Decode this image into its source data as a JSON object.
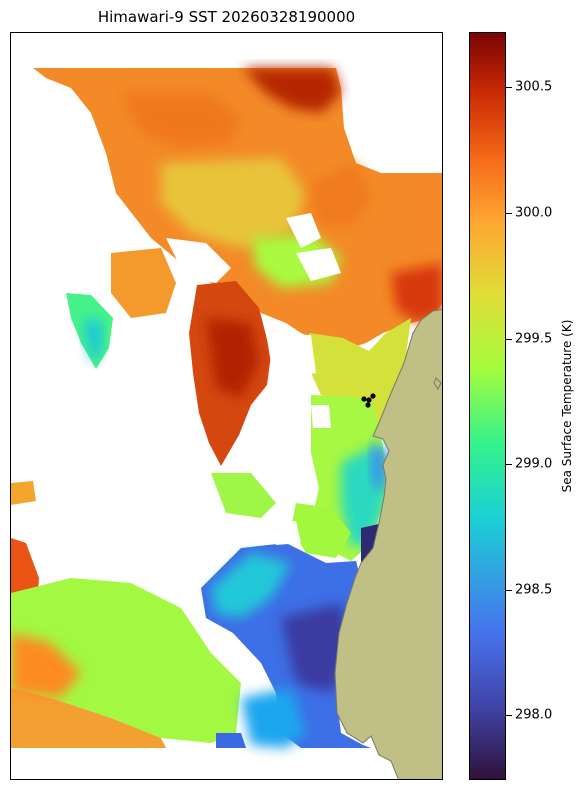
{
  "title": "Himawari-9 SST 20260328190000",
  "colorbar": {
    "label": "Sea Surface Temperature (K)",
    "ticks": [
      "300.5",
      "300.0",
      "299.5",
      "299.0",
      "298.5",
      "298.0"
    ]
  },
  "colors": {
    "land": "#bfbf86",
    "coastline": "#777766",
    "no_data": "#ffffff",
    "markers": "#000000"
  },
  "colormap": "turbo",
  "value_range": [
    297.73,
    300.73
  ]
}
